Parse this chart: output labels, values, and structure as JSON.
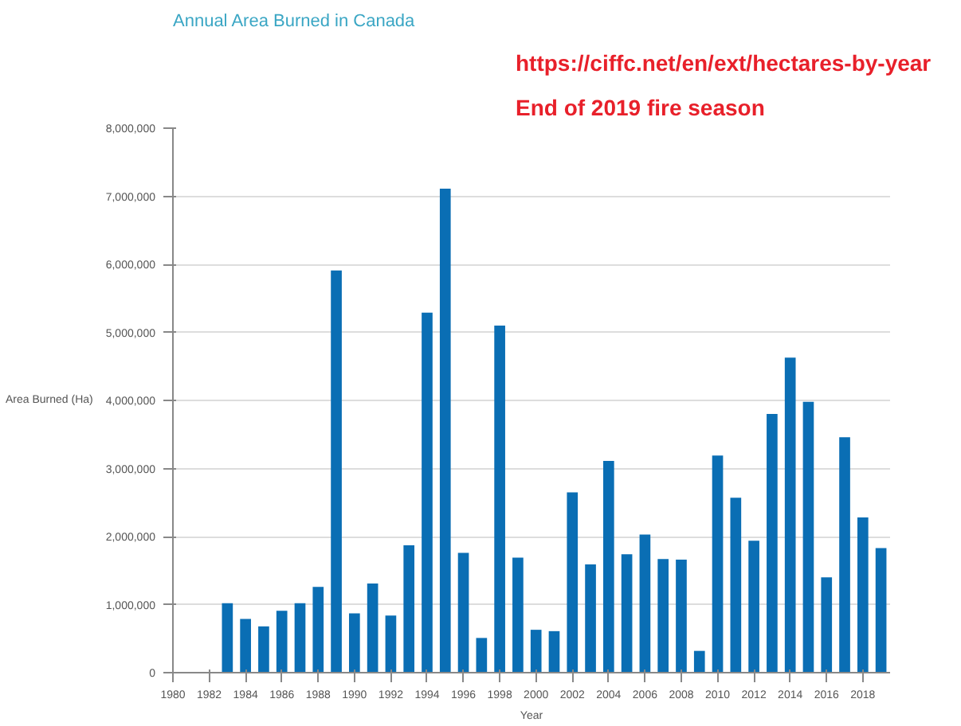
{
  "chart_data": {
    "type": "bar",
    "title": "Annual Area Burned in Canada",
    "xlabel": "Year",
    "ylabel": "Area Burned (Ha)",
    "annotations": [
      "https://ciffc.net/en/ext/hectares-by-year",
      "End of 2019 fire season"
    ],
    "x": [
      1983,
      1984,
      1985,
      1986,
      1987,
      1988,
      1989,
      1990,
      1991,
      1992,
      1993,
      1994,
      1995,
      1996,
      1997,
      1998,
      1999,
      2000,
      2001,
      2002,
      2003,
      2004,
      2005,
      2006,
      2007,
      2008,
      2009,
      2010,
      2011,
      2012,
      2013,
      2014,
      2015,
      2016,
      2017,
      2018,
      2019
    ],
    "series": [
      {
        "color": "#0a6eb4",
        "values": [
          1020000,
          790000,
          680000,
          910000,
          1020000,
          1260000,
          5910000,
          870000,
          1310000,
          840000,
          1870000,
          5290000,
          7110000,
          1760000,
          510000,
          5100000,
          1690000,
          630000,
          610000,
          2650000,
          1590000,
          3110000,
          1740000,
          2030000,
          1670000,
          1660000,
          320000,
          3190000,
          2570000,
          1940000,
          3800000,
          4630000,
          3980000,
          1400000,
          3460000,
          2280000,
          1830000
        ]
      }
    ],
    "xlim": [
      1980,
      2019.5
    ],
    "xticks": [
      1980,
      1982,
      1984,
      1986,
      1988,
      1990,
      1992,
      1994,
      1996,
      1998,
      2000,
      2002,
      2004,
      2006,
      2008,
      2010,
      2012,
      2014,
      2016,
      2018
    ],
    "ylim": [
      0,
      8000000
    ],
    "yticks": [
      0,
      {
        "value": 1000000,
        "label": "1,000,000"
      },
      {
        "value": 2000000,
        "label": "2,000,000"
      },
      {
        "value": 3000000,
        "label": "3,000,000"
      },
      {
        "value": 4000000,
        "label": "4,000,000"
      },
      {
        "value": 5000000,
        "label": "5,000,000"
      },
      {
        "value": 6000000,
        "label": "6,000,000"
      },
      {
        "value": 7000000,
        "label": "7,000,000"
      },
      {
        "value": 8000000,
        "label": "8,000,000"
      }
    ],
    "grid": "y"
  }
}
